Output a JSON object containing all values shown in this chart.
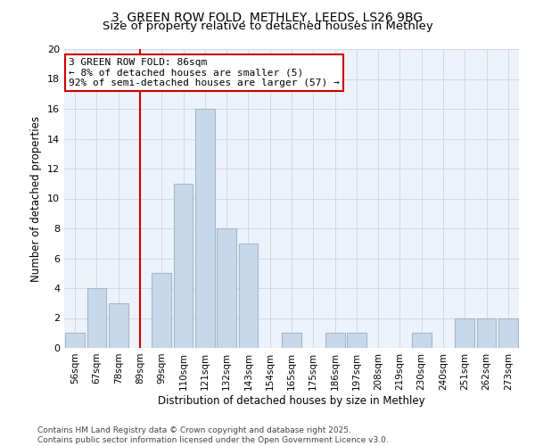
{
  "title_line1": "3, GREEN ROW FOLD, METHLEY, LEEDS, LS26 9BG",
  "title_line2": "Size of property relative to detached houses in Methley",
  "xlabel": "Distribution of detached houses by size in Methley",
  "ylabel": "Number of detached properties",
  "categories": [
    "56sqm",
    "67sqm",
    "78sqm",
    "89sqm",
    "99sqm",
    "110sqm",
    "121sqm",
    "132sqm",
    "143sqm",
    "154sqm",
    "165sqm",
    "175sqm",
    "186sqm",
    "197sqm",
    "208sqm",
    "219sqm",
    "230sqm",
    "240sqm",
    "251sqm",
    "262sqm",
    "273sqm"
  ],
  "values": [
    1,
    4,
    3,
    0,
    5,
    11,
    16,
    8,
    7,
    0,
    1,
    0,
    1,
    1,
    0,
    0,
    1,
    0,
    2,
    2,
    2
  ],
  "bar_color": "#c8d8e8",
  "bar_edge_color": "#a0b8cc",
  "red_line_x": 3,
  "red_line_color": "#cc0000",
  "annotation_text": "3 GREEN ROW FOLD: 86sqm\n← 8% of detached houses are smaller (5)\n92% of semi-detached houses are larger (57) →",
  "annotation_box_color": "#ffffff",
  "annotation_box_edge": "#cc0000",
  "ylim": [
    0,
    20
  ],
  "yticks": [
    0,
    2,
    4,
    6,
    8,
    10,
    12,
    14,
    16,
    18,
    20
  ],
  "grid_color": "#d0d8e8",
  "background_color": "#eef2fa",
  "footer_text": "Contains HM Land Registry data © Crown copyright and database right 2025.\nContains public sector information licensed under the Open Government Licence v3.0.",
  "title_fontsize": 10,
  "subtitle_fontsize": 9.5,
  "axis_label_fontsize": 8.5,
  "tick_fontsize": 7.5,
  "annotation_fontsize": 8,
  "footer_fontsize": 6.5
}
